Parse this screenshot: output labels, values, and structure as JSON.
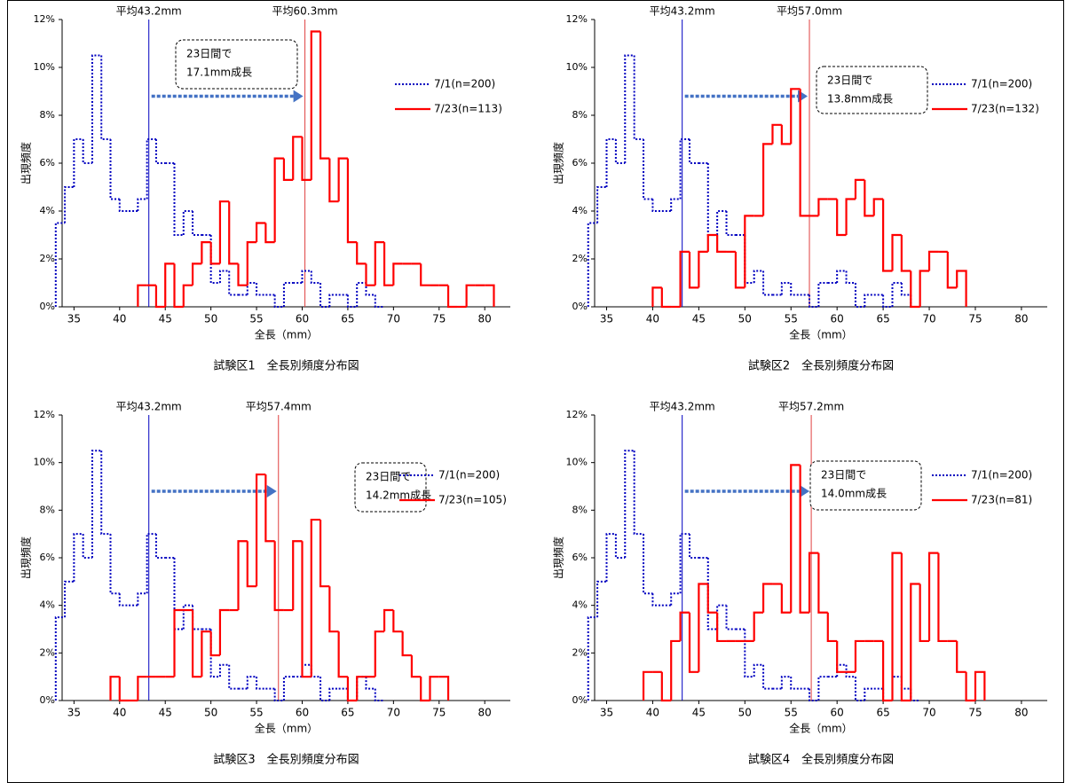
{
  "chart_data": [
    {
      "type": "histogram",
      "title": "試験区1　全長別頻度分布図",
      "xlabel": "全長（mm）",
      "ylabel": "出現頻度",
      "xlim": [
        33.7,
        82.8
      ],
      "xticks": [
        35,
        40,
        45,
        50,
        55,
        60,
        65,
        70,
        75,
        80
      ],
      "ylim": [
        0,
        12
      ],
      "yticks": [
        {
          "value": 0,
          "label": "0%"
        },
        {
          "value": 2,
          "label": "2%"
        },
        {
          "value": 4,
          "label": "4%"
        },
        {
          "value": 6,
          "label": "6%"
        },
        {
          "value": 8,
          "label": "8%"
        },
        {
          "value": 10,
          "label": "10%"
        },
        {
          "value": 12,
          "label": "12%"
        }
      ],
      "series": [
        {
          "name": "7/1(n=200)",
          "color": "#0000c0",
          "style": "dotted",
          "bins": [
            33,
            34,
            35,
            36,
            37,
            38,
            39,
            40,
            41,
            42,
            43,
            44,
            45,
            46,
            47,
            48,
            49,
            50,
            51,
            52,
            53,
            54,
            55,
            56,
            57,
            58,
            59,
            60,
            61,
            62,
            63,
            64,
            65,
            66,
            67,
            68,
            69
          ],
          "values": [
            3.5,
            5,
            7,
            6,
            10.5,
            7,
            4.5,
            4,
            4,
            4.5,
            7,
            6,
            6,
            3,
            4,
            3,
            3,
            1,
            1.5,
            0.5,
            0.5,
            1,
            0.5,
            0.5,
            0,
            1,
            1,
            1.5,
            1,
            0,
            0.5,
            0.5,
            0,
            1,
            0.5,
            0
          ]
        },
        {
          "name": "7/23(n=113)",
          "color": "#ff0000",
          "style": "solid",
          "bins": [
            42,
            43,
            44,
            45,
            46,
            47,
            48,
            49,
            50,
            51,
            52,
            53,
            54,
            55,
            56,
            57,
            58,
            59,
            60,
            61,
            62,
            63,
            64,
            65,
            66,
            67,
            68,
            69,
            70,
            71,
            72,
            73,
            74,
            75,
            76,
            77,
            78,
            79,
            80,
            81
          ],
          "values": [
            0.9,
            0.9,
            0,
            1.8,
            0,
            0.9,
            1.8,
            2.7,
            1.8,
            4.4,
            1.8,
            0.9,
            2.7,
            3.5,
            2.7,
            6.2,
            5.3,
            7.1,
            5.3,
            11.5,
            6.2,
            4.4,
            6.2,
            2.7,
            1.8,
            0.9,
            2.7,
            0.9,
            1.8,
            1.8,
            1.8,
            0.9,
            0.9,
            0.9,
            0,
            0,
            0.9,
            0.9,
            0.9
          ]
        }
      ],
      "mean_lines": [
        {
          "value": 43.2,
          "label": "平均43.2mm",
          "color": "#0000c0"
        },
        {
          "value": 60.3,
          "label": "平均60.3mm",
          "color": "#e04040"
        }
      ],
      "annotation": [
        "23日間で",
        "17.1mm成長"
      ]
    },
    {
      "type": "histogram",
      "title": "試験区2　全長別頻度分布図",
      "xlabel": "全長（mm）",
      "ylabel": "出現頻度",
      "xlim": [
        33.7,
        82.8
      ],
      "xticks": [
        35,
        40,
        45,
        50,
        55,
        60,
        65,
        70,
        75,
        80
      ],
      "ylim": [
        0,
        12
      ],
      "yticks": [
        {
          "value": 0,
          "label": "0%"
        },
        {
          "value": 2,
          "label": "2%"
        },
        {
          "value": 4,
          "label": "4%"
        },
        {
          "value": 6,
          "label": "6%"
        },
        {
          "value": 8,
          "label": "8%"
        },
        {
          "value": 10,
          "label": "10%"
        },
        {
          "value": 12,
          "label": "12%"
        }
      ],
      "series": [
        {
          "name": "7/1(n=200)",
          "color": "#0000c0",
          "style": "dotted",
          "bins": [
            33,
            34,
            35,
            36,
            37,
            38,
            39,
            40,
            41,
            42,
            43,
            44,
            45,
            46,
            47,
            48,
            49,
            50,
            51,
            52,
            53,
            54,
            55,
            56,
            57,
            58,
            59,
            60,
            61,
            62,
            63,
            64,
            65,
            66,
            67,
            68,
            69
          ],
          "values": [
            3.5,
            5,
            7,
            6,
            10.5,
            7,
            4.5,
            4,
            4,
            4.5,
            7,
            6,
            6,
            3,
            4,
            3,
            3,
            1,
            1.5,
            0.5,
            0.5,
            1,
            0.5,
            0.5,
            0,
            1,
            1,
            1.5,
            1,
            0,
            0.5,
            0.5,
            0,
            1,
            0.5,
            0
          ]
        },
        {
          "name": "7/23(n=132)",
          "color": "#ff0000",
          "style": "solid",
          "bins": [
            40,
            41,
            42,
            43,
            44,
            45,
            46,
            47,
            48,
            49,
            50,
            51,
            52,
            53,
            54,
            55,
            56,
            57,
            58,
            59,
            60,
            61,
            62,
            63,
            64,
            65,
            66,
            67,
            68,
            69,
            70,
            71,
            72,
            73,
            74
          ],
          "values": [
            0.8,
            0,
            0,
            2.3,
            0.8,
            2.3,
            3,
            2.3,
            2.3,
            0.8,
            3.8,
            3.8,
            6.8,
            7.6,
            6.8,
            9.1,
            3.8,
            3.8,
            4.5,
            4.5,
            3,
            4.5,
            5.3,
            3.8,
            4.5,
            1.5,
            3,
            1.5,
            0,
            1.5,
            2.3,
            2.3,
            0.8,
            1.5
          ]
        }
      ],
      "mean_lines": [
        {
          "value": 43.2,
          "label": "平均43.2mm",
          "color": "#0000c0"
        },
        {
          "value": 57.0,
          "label": "平均57.0mm",
          "color": "#e04040"
        }
      ],
      "annotation": [
        "23日間で",
        "13.8mm成長"
      ]
    },
    {
      "type": "histogram",
      "title": "試験区3　全長別頻度分布図",
      "xlabel": "全長（mm）",
      "ylabel": "出現頻度",
      "xlim": [
        33.7,
        82.8
      ],
      "xticks": [
        35,
        40,
        45,
        50,
        55,
        60,
        65,
        70,
        75,
        80
      ],
      "ylim": [
        0,
        12
      ],
      "yticks": [
        {
          "value": 0,
          "label": "0%"
        },
        {
          "value": 2,
          "label": "2%"
        },
        {
          "value": 4,
          "label": "4%"
        },
        {
          "value": 6,
          "label": "6%"
        },
        {
          "value": 8,
          "label": "8%"
        },
        {
          "value": 10,
          "label": "10%"
        },
        {
          "value": 12,
          "label": "12%"
        }
      ],
      "series": [
        {
          "name": "7/1(n=200)",
          "color": "#0000c0",
          "style": "dotted",
          "bins": [
            33,
            34,
            35,
            36,
            37,
            38,
            39,
            40,
            41,
            42,
            43,
            44,
            45,
            46,
            47,
            48,
            49,
            50,
            51,
            52,
            53,
            54,
            55,
            56,
            57,
            58,
            59,
            60,
            61,
            62,
            63,
            64,
            65,
            66,
            67,
            68,
            69
          ],
          "values": [
            3.5,
            5,
            7,
            6,
            10.5,
            7,
            4.5,
            4,
            4,
            4.5,
            7,
            6,
            6,
            3,
            4,
            3,
            3,
            1,
            1.5,
            0.5,
            0.5,
            1,
            0.5,
            0.5,
            0,
            1,
            1,
            1.5,
            1,
            0,
            0.5,
            0.5,
            0,
            1,
            0.5,
            0
          ]
        },
        {
          "name": "7/23(n=105)",
          "color": "#ff0000",
          "style": "solid",
          "bins": [
            39,
            40,
            41,
            42,
            43,
            44,
            45,
            46,
            47,
            48,
            49,
            50,
            51,
            52,
            53,
            54,
            55,
            56,
            57,
            58,
            59,
            60,
            61,
            62,
            63,
            64,
            65,
            66,
            67,
            68,
            69,
            70,
            71,
            72,
            73,
            74,
            75,
            76
          ],
          "values": [
            1,
            0,
            0,
            1,
            1,
            1,
            1,
            3.8,
            3.8,
            1,
            2.9,
            1.9,
            3.8,
            3.8,
            6.7,
            4.8,
            9.5,
            6.7,
            3.8,
            3.8,
            6.7,
            1,
            7.6,
            4.8,
            2.9,
            1,
            0,
            1,
            1,
            2.9,
            3.8,
            2.9,
            1.9,
            1,
            0,
            1,
            1
          ]
        }
      ],
      "mean_lines": [
        {
          "value": 43.2,
          "label": "平均43.2mm",
          "color": "#0000c0"
        },
        {
          "value": 57.4,
          "label": "平均57.4mm",
          "color": "#e04040"
        }
      ],
      "annotation": [
        "23日間で",
        "14.2mm成長"
      ]
    },
    {
      "type": "histogram",
      "title": "試験区4　全長別頻度分布図",
      "xlabel": "全長（mm）",
      "ylabel": "出現頻度",
      "xlim": [
        33.7,
        82.8
      ],
      "xticks": [
        35,
        40,
        45,
        50,
        55,
        60,
        65,
        70,
        75,
        80
      ],
      "ylim": [
        0,
        12
      ],
      "yticks": [
        {
          "value": 0,
          "label": "0%"
        },
        {
          "value": 2,
          "label": "2%"
        },
        {
          "value": 4,
          "label": "4%"
        },
        {
          "value": 6,
          "label": "6%"
        },
        {
          "value": 8,
          "label": "8%"
        },
        {
          "value": 10,
          "label": "10%"
        },
        {
          "value": 12,
          "label": "12%"
        }
      ],
      "series": [
        {
          "name": "7/1(n=200)",
          "color": "#0000c0",
          "style": "dotted",
          "bins": [
            33,
            34,
            35,
            36,
            37,
            38,
            39,
            40,
            41,
            42,
            43,
            44,
            45,
            46,
            47,
            48,
            49,
            50,
            51,
            52,
            53,
            54,
            55,
            56,
            57,
            58,
            59,
            60,
            61,
            62,
            63,
            64,
            65,
            66,
            67,
            68,
            69
          ],
          "values": [
            3.5,
            5,
            7,
            6,
            10.5,
            7,
            4.5,
            4,
            4,
            4.5,
            7,
            6,
            6,
            3,
            4,
            3,
            3,
            1,
            1.5,
            0.5,
            0.5,
            1,
            0.5,
            0.5,
            0,
            1,
            1,
            1.5,
            1,
            0,
            0.5,
            0.5,
            0,
            1,
            0.5,
            0
          ]
        },
        {
          "name": "7/23(n=81)",
          "color": "#ff0000",
          "style": "solid",
          "bins": [
            39,
            40,
            41,
            42,
            43,
            44,
            45,
            46,
            47,
            48,
            49,
            50,
            51,
            52,
            53,
            54,
            55,
            56,
            57,
            58,
            59,
            60,
            61,
            62,
            63,
            64,
            65,
            66,
            67,
            68,
            69,
            70,
            71,
            72,
            73,
            74,
            75,
            76
          ],
          "values": [
            1.2,
            1.2,
            0,
            2.5,
            3.7,
            1.2,
            4.9,
            3.7,
            2.5,
            2.5,
            2.5,
            2.5,
            3.7,
            4.9,
            4.9,
            3.7,
            9.9,
            3.7,
            6.2,
            3.7,
            2.5,
            1.2,
            1.2,
            2.5,
            2.5,
            2.5,
            0,
            6.2,
            0,
            4.9,
            2.5,
            6.2,
            2.5,
            2.5,
            1.2,
            0,
            1.2
          ]
        }
      ],
      "mean_lines": [
        {
          "value": 43.2,
          "label": "平均43.2mm",
          "color": "#0000c0"
        },
        {
          "value": 57.2,
          "label": "平均57.2mm",
          "color": "#e04040"
        }
      ],
      "annotation": [
        "23日間で",
        "14.0mm成長"
      ]
    }
  ]
}
